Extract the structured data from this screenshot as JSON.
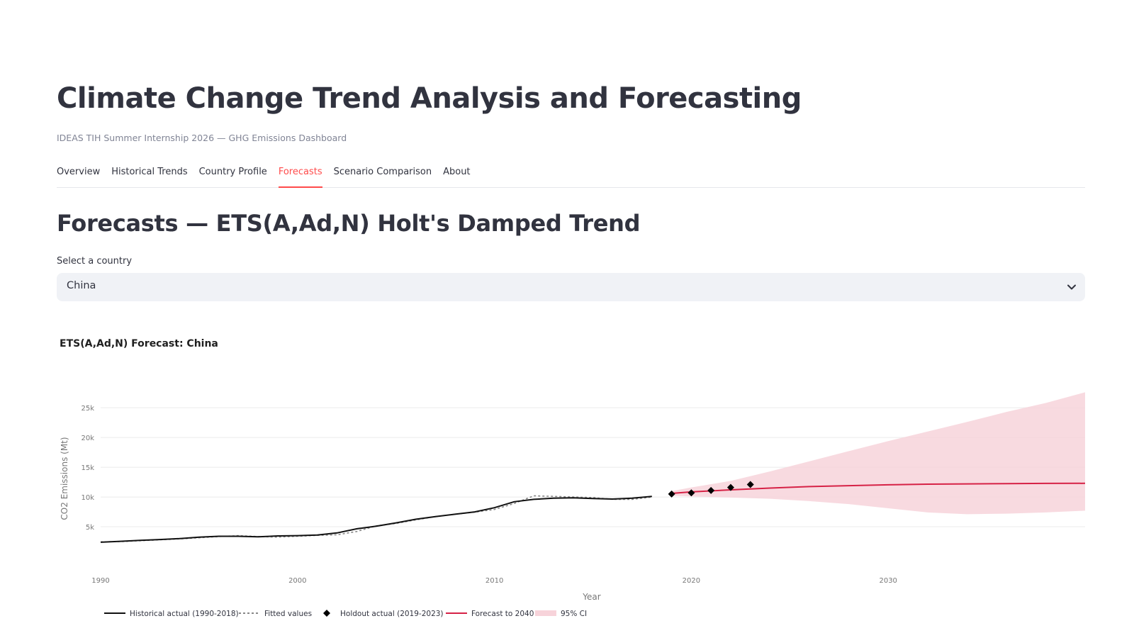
{
  "page": {
    "title": "Climate Change Trend Analysis and Forecasting",
    "subtitle": "IDEAS TIH Summer Internship 2026 — GHG Emissions Dashboard"
  },
  "tabs": [
    {
      "label": "Overview",
      "active": false
    },
    {
      "label": "Historical Trends",
      "active": false
    },
    {
      "label": "Country Profile",
      "active": false
    },
    {
      "label": "Forecasts",
      "active": true
    },
    {
      "label": "Scenario Comparison",
      "active": false
    },
    {
      "label": "About",
      "active": false
    }
  ],
  "section": {
    "title": "Forecasts — ETS(A,Ad,N) Holt's Damped Trend"
  },
  "country_select": {
    "label": "Select a country",
    "value": "China",
    "icon": "chevron-down-icon"
  },
  "colors": {
    "accent": "#ff4b4b",
    "historical": "#111111",
    "fitted": "#888888",
    "holdout": "#000000",
    "forecast": "#d62246",
    "ci": "#f7d3da"
  },
  "chart_data": {
    "type": "line",
    "title": "ETS(A,Ad,N) Forecast: China",
    "xlabel": "Year",
    "ylabel": "CO2 Emissions (Mt)",
    "xlim": [
      1990,
      2040
    ],
    "ylim": [
      0,
      28000
    ],
    "x_ticks": [
      1990,
      2000,
      2010,
      2020,
      2030
    ],
    "y_ticks": [
      5000,
      10000,
      15000,
      20000,
      25000
    ],
    "y_tick_labels": [
      "5k",
      "10k",
      "15k",
      "20k",
      "25k"
    ],
    "grid": true,
    "legend_position": "bottom-left",
    "series": [
      {
        "name": "Historical actual (1990-2018)",
        "style": "line",
        "x": [
          1990,
          1991,
          1992,
          1993,
          1994,
          1995,
          1996,
          1997,
          1998,
          1999,
          2000,
          2001,
          2002,
          2003,
          2004,
          2005,
          2006,
          2007,
          2008,
          2009,
          2010,
          2011,
          2012,
          2013,
          2014,
          2015,
          2016,
          2017,
          2018
        ],
        "y": [
          2400,
          2550,
          2700,
          2850,
          3000,
          3250,
          3400,
          3400,
          3300,
          3450,
          3500,
          3600,
          3950,
          4650,
          5100,
          5650,
          6250,
          6700,
          7100,
          7500,
          8200,
          9200,
          9600,
          9800,
          9850,
          9750,
          9650,
          9800,
          10100
        ]
      },
      {
        "name": "Fitted values",
        "style": "dashed",
        "x": [
          1990,
          1991,
          1992,
          1993,
          1994,
          1995,
          1996,
          1997,
          1998,
          1999,
          2000,
          2001,
          2002,
          2003,
          2004,
          2005,
          2006,
          2007,
          2008,
          2009,
          2010,
          2011,
          2012,
          2013,
          2014,
          2015,
          2016,
          2017,
          2018
        ],
        "y": [
          2450,
          2500,
          2650,
          2800,
          2950,
          3150,
          3350,
          3500,
          3350,
          3250,
          3400,
          3550,
          3650,
          4200,
          5150,
          5550,
          6150,
          6700,
          7100,
          7450,
          7900,
          8900,
          10200,
          10100,
          10000,
          9900,
          9600,
          9600,
          10000
        ]
      },
      {
        "name": "Holdout actual (2019-2023)",
        "style": "markers",
        "x": [
          2019,
          2020,
          2021,
          2022,
          2023
        ],
        "y": [
          10500,
          10700,
          11100,
          11600,
          12100
        ]
      },
      {
        "name": "Forecast to 2040",
        "style": "line",
        "x": [
          2019,
          2020,
          2022,
          2024,
          2026,
          2028,
          2030,
          2032,
          2034,
          2036,
          2038,
          2040
        ],
        "y": [
          10600,
          10850,
          11200,
          11500,
          11750,
          11900,
          12050,
          12150,
          12200,
          12250,
          12280,
          12300
        ]
      },
      {
        "name": "95% CI",
        "style": "band",
        "x": [
          2019,
          2020,
          2022,
          2024,
          2026,
          2028,
          2030,
          2032,
          2034,
          2036,
          2038,
          2040
        ],
        "lower": [
          10200,
          10100,
          9900,
          9700,
          9300,
          8800,
          8100,
          7400,
          7100,
          7200,
          7400,
          7700
        ],
        "upper": [
          11000,
          11600,
          12700,
          14300,
          16000,
          17700,
          19400,
          21000,
          22600,
          24300,
          25800,
          27600
        ]
      }
    ]
  }
}
